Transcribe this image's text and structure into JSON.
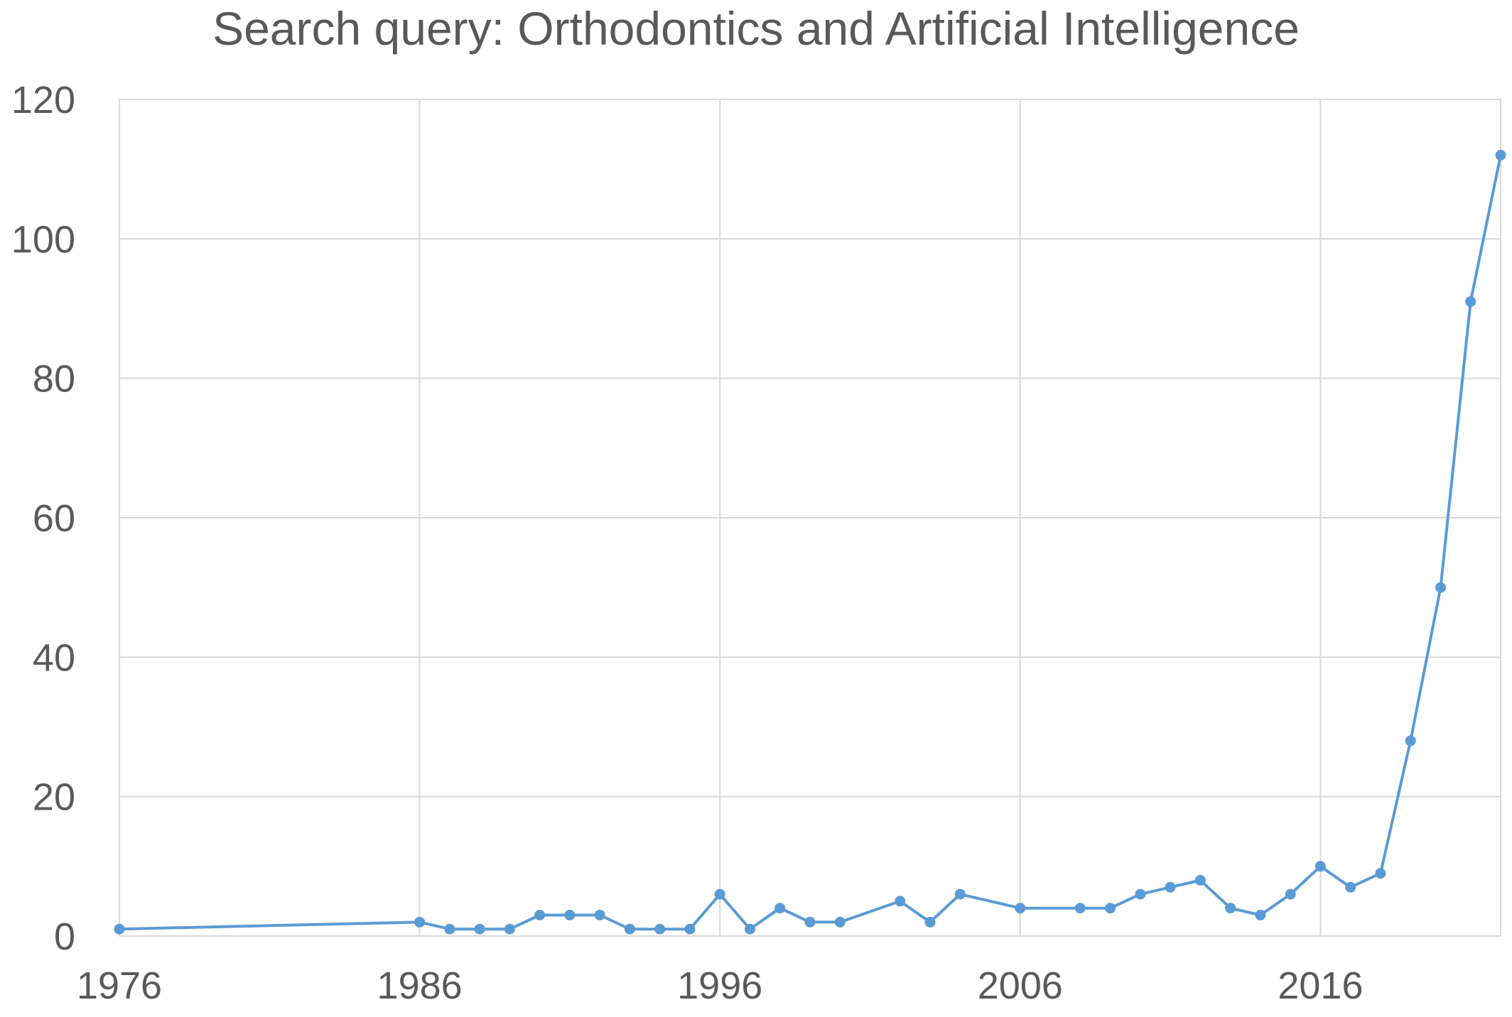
{
  "chart_data": {
    "type": "line",
    "title": "Search query: Orthodontics and Artificial Intelligence",
    "xlabel": "",
    "ylabel": "",
    "xlim": [
      1976,
      2022
    ],
    "ylim": [
      0,
      120
    ],
    "x_ticks": [
      1976,
      1986,
      1996,
      2006,
      2016
    ],
    "y_ticks": [
      0,
      20,
      40,
      60,
      80,
      100,
      120
    ],
    "grid": true,
    "legend": "none",
    "colors": {
      "series": "#5B9BD5",
      "grid": "#D9D9D9",
      "text": "#595959"
    },
    "series": [
      {
        "x": [
          1976,
          1986,
          1987,
          1988,
          1989,
          1990,
          1991,
          1992,
          1993,
          1994,
          1995,
          1996,
          1997,
          1998,
          1999,
          2000,
          2002,
          2003,
          2004,
          2006,
          2008,
          2009,
          2010,
          2011,
          2012,
          2013,
          2014,
          2015,
          2016,
          2017,
          2018,
          2019,
          2020,
          2021,
          2022
        ],
        "values": [
          1,
          2,
          1,
          1,
          1,
          3,
          3,
          3,
          1,
          1,
          1,
          6,
          1,
          4,
          2,
          2,
          5,
          2,
          6,
          4,
          4,
          4,
          6,
          7,
          8,
          4,
          3,
          6,
          10,
          7,
          9,
          28,
          50,
          91,
          112
        ]
      }
    ]
  }
}
